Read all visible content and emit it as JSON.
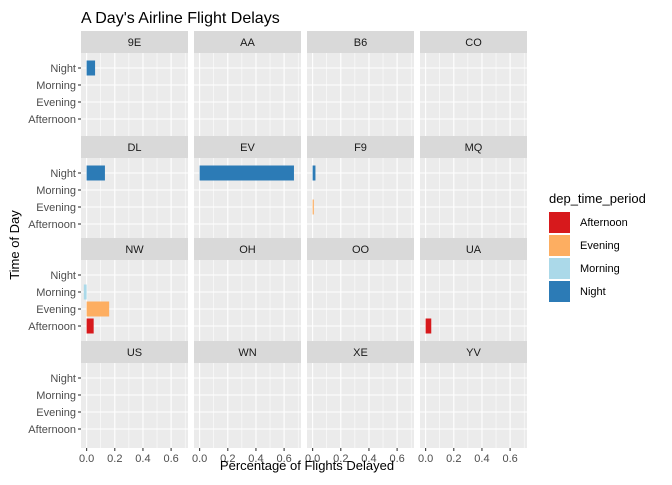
{
  "chart_data": {
    "type": "bar",
    "orientation": "horizontal",
    "title": "A Day's Airline Flight Delays",
    "xlabel": "Percentage of Flights Delayed",
    "ylabel": "Time of Day",
    "xlim": [
      -0.04,
      0.72
    ],
    "x_ticks": [
      0.0,
      0.2,
      0.4,
      0.6
    ],
    "x_tick_labels": [
      "0.0",
      "0.2",
      "0.4",
      "0.6"
    ],
    "categories": [
      "Afternoon",
      "Evening",
      "Morning",
      "Night"
    ],
    "facet_layout": "4 columns x 4 rows",
    "facets": [
      "9E",
      "AA",
      "B6",
      "CO",
      "DL",
      "EV",
      "F9",
      "MQ",
      "NW",
      "OH",
      "OO",
      "UA",
      "US",
      "WN",
      "XE",
      "YV"
    ],
    "legend_title": "dep_time_period",
    "legend_position": "right",
    "grid": true,
    "series": [
      {
        "name": "Afternoon",
        "color": "#D7191C"
      },
      {
        "name": "Evening",
        "color": "#FDAE61"
      },
      {
        "name": "Morning",
        "color": "#ABD9E9"
      },
      {
        "name": "Night",
        "color": "#2C7BB6"
      }
    ],
    "bars": [
      {
        "facet": "9E",
        "period": "Night",
        "value": 0.06
      },
      {
        "facet": "DL",
        "period": "Night",
        "value": 0.13
      },
      {
        "facet": "EV",
        "period": "Night",
        "value": 0.67
      },
      {
        "facet": "F9",
        "period": "Night",
        "value": 0.02
      },
      {
        "facet": "F9",
        "period": "Evening",
        "value": 0.005
      },
      {
        "facet": "NW",
        "period": "Morning",
        "value": -0.02
      },
      {
        "facet": "NW",
        "period": "Evening",
        "value": 0.16
      },
      {
        "facet": "NW",
        "period": "Afternoon",
        "value": 0.05
      },
      {
        "facet": "UA",
        "period": "Afternoon",
        "value": 0.04
      }
    ]
  }
}
